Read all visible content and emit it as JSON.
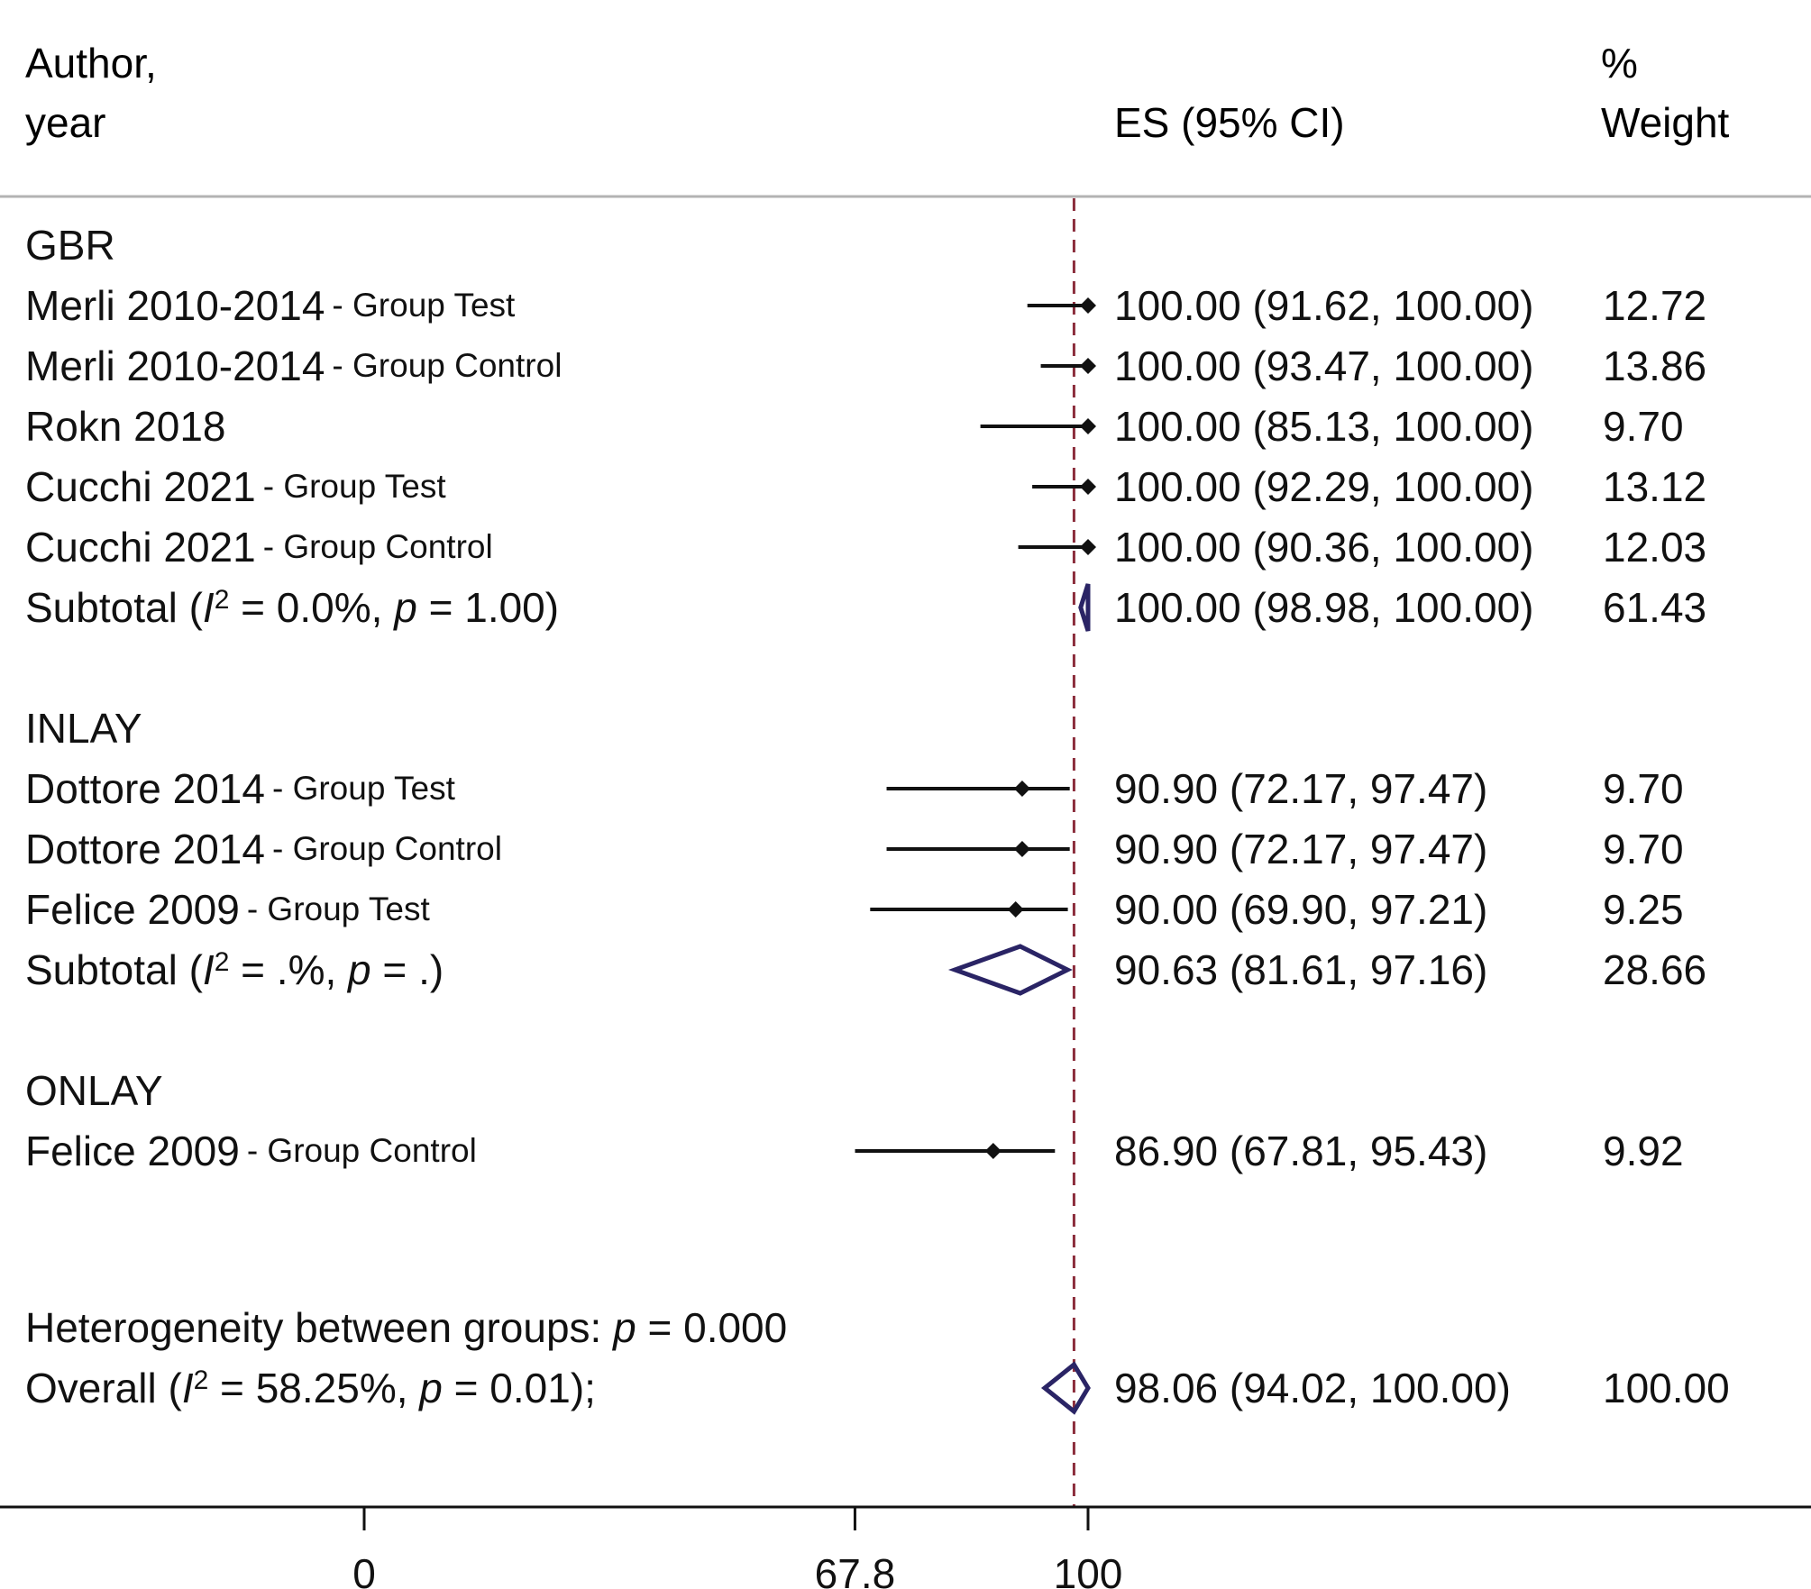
{
  "header": {
    "author_line1": "Author,",
    "author_line2": "year",
    "es_label": "ES (95% CI)",
    "weight_line1": "%",
    "weight_line2": "Weight"
  },
  "chart_data": {
    "type": "forest",
    "xlim": [
      -50,
      200
    ],
    "ticks": [
      0,
      67.8,
      100
    ],
    "tick_labels": [
      "0",
      "67.8",
      "100"
    ],
    "reference_line": 98.06,
    "groups": [
      {
        "name": "GBR",
        "studies": [
          {
            "author": "Merli 2010-2014",
            "group": "- Group Test",
            "es": 100.0,
            "lo": 91.62,
            "hi": 100.0,
            "ci_text": "100.00 (91.62, 100.00)",
            "weight": "12.72"
          },
          {
            "author": "Merli 2010-2014",
            "group": "- Group Control",
            "es": 100.0,
            "lo": 93.47,
            "hi": 100.0,
            "ci_text": "100.00 (93.47, 100.00)",
            "weight": "13.86"
          },
          {
            "author": "Rokn 2018",
            "group": "",
            "es": 100.0,
            "lo": 85.13,
            "hi": 100.0,
            "ci_text": "100.00 (85.13, 100.00)",
            "weight": "9.70"
          },
          {
            "author": "Cucchi 2021",
            "group": "- Group Test",
            "es": 100.0,
            "lo": 92.29,
            "hi": 100.0,
            "ci_text": "100.00 (92.29, 100.00)",
            "weight": "13.12"
          },
          {
            "author": "Cucchi 2021",
            "group": "- Group Control",
            "es": 100.0,
            "lo": 90.36,
            "hi": 100.0,
            "ci_text": "100.00 (90.36, 100.00)",
            "weight": "12.03"
          }
        ],
        "subtotal": {
          "label": "Subtotal",
          "i2": "0.0%",
          "p": "1.00",
          "es": 100.0,
          "lo": 98.98,
          "hi": 100.0,
          "ci_text": "100.00 (98.98, 100.00)",
          "weight": "61.43"
        }
      },
      {
        "name": "INLAY",
        "studies": [
          {
            "author": "Dottore 2014",
            "group": "- Group Test",
            "es": 90.9,
            "lo": 72.17,
            "hi": 97.47,
            "ci_text": "90.90 (72.17, 97.47)",
            "weight": "9.70"
          },
          {
            "author": "Dottore 2014",
            "group": "- Group Control",
            "es": 90.9,
            "lo": 72.17,
            "hi": 97.47,
            "ci_text": "90.90 (72.17, 97.47)",
            "weight": "9.70"
          },
          {
            "author": "Felice 2009",
            "group": "- Group Test",
            "es": 90.0,
            "lo": 69.9,
            "hi": 97.21,
            "ci_text": "90.00 (69.90, 97.21)",
            "weight": "9.25"
          }
        ],
        "subtotal": {
          "label": "Subtotal",
          "i2": ".%",
          "p": ".",
          "es": 90.63,
          "lo": 81.61,
          "hi": 97.16,
          "ci_text": "90.63 (81.61, 97.16)",
          "weight": "28.66"
        }
      },
      {
        "name": "ONLAY",
        "studies": [
          {
            "author": "Felice 2009",
            "group": "- Group Control",
            "es": 86.9,
            "lo": 67.81,
            "hi": 95.43,
            "ci_text": "86.90 (67.81, 95.43)",
            "weight": "9.92"
          }
        ],
        "subtotal": null
      }
    ],
    "heterogeneity": {
      "label": "Heterogeneity between groups:",
      "p": "0.000"
    },
    "overall": {
      "label": "Overall",
      "i2": "58.25%",
      "p": "0.01",
      "es": 98.06,
      "lo": 94.02,
      "hi": 100.0,
      "ci_text": "98.06 (94.02, 100.00)",
      "weight": "100.00"
    },
    "colors": {
      "ci_line": "#111111",
      "diamond": "#2a2465",
      "ref_line": "#8b2d3c",
      "rule": "#b3b3b3"
    }
  }
}
